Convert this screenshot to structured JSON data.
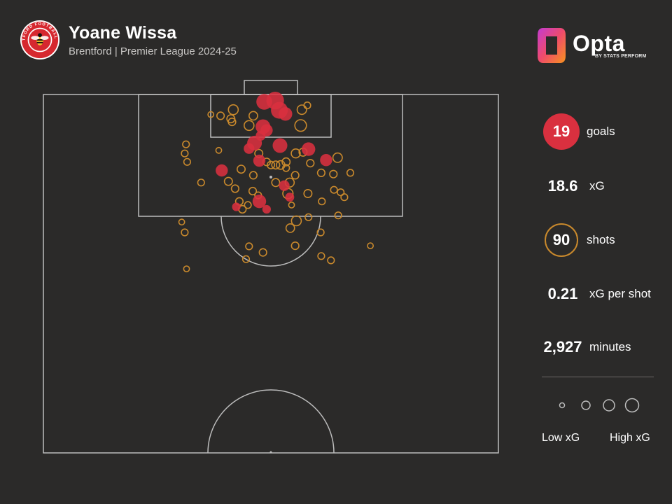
{
  "header": {
    "player_name": "Yoane Wissa",
    "subtitle": "Brentford | Premier League 2024-25",
    "crest_text": "BRENTFORD FOOTBALL CLUB"
  },
  "branding": {
    "name": "Opta",
    "byline": "BY STATS PERFORM"
  },
  "stats": {
    "goals_value": "19",
    "goals_label": "goals",
    "xg_value": "18.6",
    "xg_label": "xG",
    "shots_value": "90",
    "shots_label": "shots",
    "xgps_value": "0.21",
    "xgps_label": "xG per shot",
    "minutes_value": "2,927",
    "minutes_label": "minutes"
  },
  "legend": {
    "low_label": "Low xG",
    "high_label": "High xG"
  },
  "colors": {
    "goal": "#d9303f",
    "shot": "#c9892c",
    "background": "#2b2a29",
    "lines": "#bdbdbd"
  },
  "chart_data": {
    "type": "scatter",
    "description_units": "pitch yards: x = width across pitch (0-75, goal centre at 37.5), y = distance from goal line",
    "xlim": [
      0,
      75
    ],
    "ylim": [
      0,
      59
    ],
    "size_encodes": "xG",
    "series": [
      {
        "name": "goals",
        "points": [
          {
            "x": 36.4,
            "y": 1.2,
            "xg": 0.3
          },
          {
            "x": 38.2,
            "y": 1.0,
            "xg": 0.4
          },
          {
            "x": 38.9,
            "y": 2.6,
            "xg": 0.35
          },
          {
            "x": 39.9,
            "y": 3.2,
            "xg": 0.2
          },
          {
            "x": 36.2,
            "y": 5.3,
            "xg": 0.25
          },
          {
            "x": 36.8,
            "y": 5.9,
            "xg": 0.15
          },
          {
            "x": 35.8,
            "y": 6.8,
            "xg": 0.08
          },
          {
            "x": 34.8,
            "y": 8.0,
            "xg": 0.25
          },
          {
            "x": 33.9,
            "y": 8.9,
            "xg": 0.1
          },
          {
            "x": 39.0,
            "y": 8.4,
            "xg": 0.25
          },
          {
            "x": 43.7,
            "y": 9.0,
            "xg": 0.2
          },
          {
            "x": 35.6,
            "y": 10.9,
            "xg": 0.15
          },
          {
            "x": 46.6,
            "y": 10.8,
            "xg": 0.15
          },
          {
            "x": 29.4,
            "y": 12.5,
            "xg": 0.15
          },
          {
            "x": 39.7,
            "y": 15.0,
            "xg": 0.1
          },
          {
            "x": 40.6,
            "y": 16.9,
            "xg": 0.06
          },
          {
            "x": 35.6,
            "y": 17.6,
            "xg": 0.2
          },
          {
            "x": 31.8,
            "y": 18.5,
            "xg": 0.05
          },
          {
            "x": 36.8,
            "y": 18.9,
            "xg": 0.05
          }
        ]
      },
      {
        "name": "shots",
        "points": [
          {
            "x": 27.6,
            "y": 3.3,
            "xg": 0.01
          },
          {
            "x": 29.2,
            "y": 3.5,
            "xg": 0.03
          },
          {
            "x": 31.3,
            "y": 2.5,
            "xg": 0.08
          },
          {
            "x": 30.9,
            "y": 4.0,
            "xg": 0.04
          },
          {
            "x": 31.1,
            "y": 4.5,
            "xg": 0.03
          },
          {
            "x": 34.6,
            "y": 3.5,
            "xg": 0.05
          },
          {
            "x": 42.6,
            "y": 2.5,
            "xg": 0.07
          },
          {
            "x": 43.5,
            "y": 1.8,
            "xg": 0.02
          },
          {
            "x": 33.9,
            "y": 5.1,
            "xg": 0.08
          },
          {
            "x": 42.4,
            "y": 5.1,
            "xg": 0.13
          },
          {
            "x": 23.5,
            "y": 8.2,
            "xg": 0.02
          },
          {
            "x": 23.3,
            "y": 9.7,
            "xg": 0.02
          },
          {
            "x": 28.9,
            "y": 9.2,
            "xg": 0.01
          },
          {
            "x": 23.7,
            "y": 11.1,
            "xg": 0.02
          },
          {
            "x": 35.5,
            "y": 9.7,
            "xg": 0.04
          },
          {
            "x": 38.3,
            "y": 11.6,
            "xg": 0.04
          },
          {
            "x": 41.6,
            "y": 9.7,
            "xg": 0.06
          },
          {
            "x": 42.8,
            "y": 9.5,
            "xg": 0.04
          },
          {
            "x": 44.0,
            "y": 11.3,
            "xg": 0.03
          },
          {
            "x": 48.5,
            "y": 10.4,
            "xg": 0.07
          },
          {
            "x": 36.8,
            "y": 11.1,
            "xg": 0.03
          },
          {
            "x": 37.5,
            "y": 11.6,
            "xg": 0.03
          },
          {
            "x": 39.1,
            "y": 11.6,
            "xg": 0.05
          },
          {
            "x": 40.0,
            "y": 11.1,
            "xg": 0.04
          },
          {
            "x": 40.0,
            "y": 12.1,
            "xg": 0.02
          },
          {
            "x": 32.6,
            "y": 12.3,
            "xg": 0.04
          },
          {
            "x": 34.6,
            "y": 13.3,
            "xg": 0.03
          },
          {
            "x": 38.3,
            "y": 14.5,
            "xg": 0.04
          },
          {
            "x": 41.5,
            "y": 13.3,
            "xg": 0.03
          },
          {
            "x": 45.8,
            "y": 12.9,
            "xg": 0.03
          },
          {
            "x": 47.8,
            "y": 13.1,
            "xg": 0.03
          },
          {
            "x": 50.6,
            "y": 12.9,
            "xg": 0.02
          },
          {
            "x": 26.0,
            "y": 14.5,
            "xg": 0.02
          },
          {
            "x": 30.5,
            "y": 14.3,
            "xg": 0.04
          },
          {
            "x": 31.6,
            "y": 15.5,
            "xg": 0.03
          },
          {
            "x": 34.5,
            "y": 15.9,
            "xg": 0.03
          },
          {
            "x": 35.4,
            "y": 16.6,
            "xg": 0.02
          },
          {
            "x": 40.6,
            "y": 14.5,
            "xg": 0.06
          },
          {
            "x": 40.3,
            "y": 16.3,
            "xg": 0.09
          },
          {
            "x": 43.6,
            "y": 16.3,
            "xg": 0.04
          },
          {
            "x": 47.9,
            "y": 15.7,
            "xg": 0.02
          },
          {
            "x": 49.0,
            "y": 16.1,
            "xg": 0.02
          },
          {
            "x": 49.6,
            "y": 16.9,
            "xg": 0.02
          },
          {
            "x": 45.9,
            "y": 17.6,
            "xg": 0.02
          },
          {
            "x": 40.9,
            "y": 18.2,
            "xg": 0.01
          },
          {
            "x": 32.3,
            "y": 17.6,
            "xg": 0.03
          },
          {
            "x": 33.7,
            "y": 18.2,
            "xg": 0.02
          },
          {
            "x": 32.8,
            "y": 18.9,
            "xg": 0.03
          },
          {
            "x": 48.6,
            "y": 19.9,
            "xg": 0.02
          },
          {
            "x": 41.7,
            "y": 20.8,
            "xg": 0.08
          },
          {
            "x": 43.7,
            "y": 20.2,
            "xg": 0.02
          },
          {
            "x": 22.8,
            "y": 21.0,
            "xg": 0.01
          },
          {
            "x": 23.3,
            "y": 22.7,
            "xg": 0.02
          },
          {
            "x": 40.7,
            "y": 22.0,
            "xg": 0.05
          },
          {
            "x": 45.7,
            "y": 22.7,
            "xg": 0.02
          },
          {
            "x": 33.9,
            "y": 25.0,
            "xg": 0.02
          },
          {
            "x": 36.2,
            "y": 26.0,
            "xg": 0.03
          },
          {
            "x": 41.5,
            "y": 24.9,
            "xg": 0.03
          },
          {
            "x": 33.4,
            "y": 27.1,
            "xg": 0.02
          },
          {
            "x": 45.8,
            "y": 26.6,
            "xg": 0.02
          },
          {
            "x": 47.4,
            "y": 27.3,
            "xg": 0.02
          },
          {
            "x": 53.9,
            "y": 24.9,
            "xg": 0.01
          },
          {
            "x": 23.6,
            "y": 28.7,
            "xg": 0.01
          }
        ]
      }
    ]
  }
}
